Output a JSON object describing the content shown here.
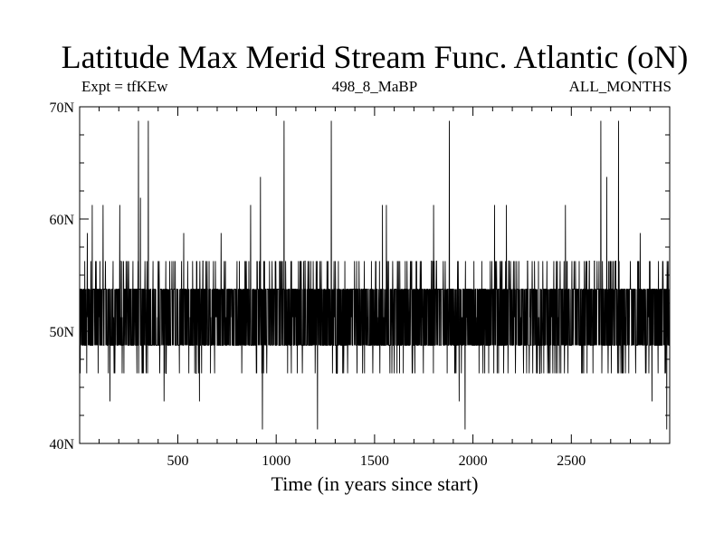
{
  "header": {
    "title": "Latitude Max Merid Stream Func. Atlantic (oN)",
    "left_note": "Expt = tfKEw",
    "center_note": "498_8_MaBP",
    "right_note": "ALL_MONTHS"
  },
  "chart_data": {
    "type": "line",
    "title": "Latitude Max Merid Stream Func. Atlantic (oN)",
    "xlabel": "Time (in years since start)",
    "ylabel": "",
    "xlim": [
      1,
      3000
    ],
    "ylim": [
      40,
      70
    ],
    "x_ticks": [
      500,
      1000,
      1500,
      2000,
      2500
    ],
    "y_ticks": [
      40,
      50,
      60,
      70
    ],
    "y_tick_labels": [
      "40N",
      "50N",
      "60N",
      "70N"
    ],
    "grid": false,
    "line_color": "#000000",
    "dominant_levels": [
      48.75,
      53.75
    ],
    "level_range": [
      41.25,
      68.75
    ],
    "spikes": [
      {
        "x": 40,
        "y": 58.75
      },
      {
        "x": 65,
        "y": 61.25
      },
      {
        "x": 120,
        "y": 61.25
      },
      {
        "x": 155,
        "y": 43.75
      },
      {
        "x": 205,
        "y": 61.25
      },
      {
        "x": 300,
        "y": 68.75
      },
      {
        "x": 310,
        "y": 61.9
      },
      {
        "x": 350,
        "y": 68.75
      },
      {
        "x": 430,
        "y": 43.75
      },
      {
        "x": 530,
        "y": 58.75
      },
      {
        "x": 610,
        "y": 43.75
      },
      {
        "x": 720,
        "y": 58.75
      },
      {
        "x": 870,
        "y": 61.25
      },
      {
        "x": 920,
        "y": 63.75
      },
      {
        "x": 930,
        "y": 41.25
      },
      {
        "x": 1040,
        "y": 68.75
      },
      {
        "x": 1210,
        "y": 41.25
      },
      {
        "x": 1280,
        "y": 68.75
      },
      {
        "x": 1540,
        "y": 61.25
      },
      {
        "x": 1560,
        "y": 61.25
      },
      {
        "x": 1800,
        "y": 61.25
      },
      {
        "x": 1880,
        "y": 68.75
      },
      {
        "x": 1930,
        "y": 43.75
      },
      {
        "x": 1960,
        "y": 41.25
      },
      {
        "x": 2110,
        "y": 61.25
      },
      {
        "x": 2170,
        "y": 61.25
      },
      {
        "x": 2470,
        "y": 61.25
      },
      {
        "x": 2650,
        "y": 68.75
      },
      {
        "x": 2680,
        "y": 63.75
      },
      {
        "x": 2740,
        "y": 68.75
      },
      {
        "x": 2850,
        "y": 58.75
      },
      {
        "x": 2910,
        "y": 43.75
      },
      {
        "x": 2985,
        "y": 41.25
      }
    ]
  }
}
